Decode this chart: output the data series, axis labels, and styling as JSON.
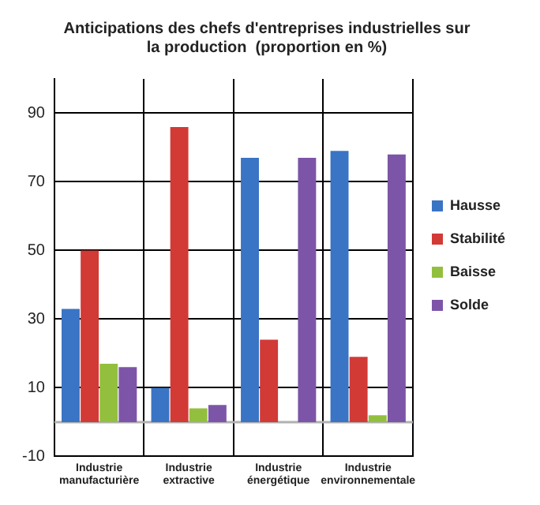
{
  "chart_data": {
    "type": "bar",
    "title": "Anticipations des chefs d'entreprises industrielles sur la production  (proportion en %)",
    "categories": [
      "Industrie manufacturière",
      "Industrie extractive",
      "Industrie énergétique",
      "Industrie environnementale"
    ],
    "series": [
      {
        "name": "Hausse",
        "color": "#3a74c4",
        "values": [
          33,
          10,
          77,
          79
        ]
      },
      {
        "name": "Stabilité",
        "color": "#d23a36",
        "values": [
          50,
          86,
          24,
          19
        ]
      },
      {
        "name": "Baisse",
        "color": "#92c03e",
        "values": [
          17,
          4,
          0,
          2
        ]
      },
      {
        "name": "Solde",
        "color": "#7d55a8",
        "values": [
          16,
          5,
          77,
          78
        ]
      }
    ],
    "ylim": [
      -10,
      100
    ],
    "yticks": [
      -10,
      10,
      30,
      50,
      70,
      90
    ],
    "ref_lines": [
      {
        "axis": "y",
        "value": 0,
        "color": "#b0b0b0"
      }
    ],
    "grid": true,
    "legend": "right"
  }
}
